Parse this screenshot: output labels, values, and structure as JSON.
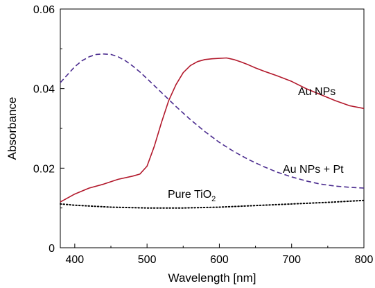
{
  "chart_data": {
    "type": "line",
    "title": "",
    "xlabel": "Wavelength [nm]",
    "ylabel": "Absorbance",
    "xlim": [
      380,
      800
    ],
    "ylim": [
      0,
      0.06
    ],
    "x_ticks": [
      400,
      500,
      600,
      700,
      800
    ],
    "x_tick_labels": [
      "400",
      "500",
      "600",
      "700",
      "800"
    ],
    "y_ticks": [
      0,
      0.02,
      0.04,
      0.06
    ],
    "y_tick_labels": [
      "0",
      "0.02",
      "0.04",
      "0.06"
    ],
    "grid": false,
    "legend": "none (labels placed next to curves)",
    "series": [
      {
        "name": "Au NPs",
        "color": "#b2182b",
        "style": "solid",
        "x": [
          380,
          400,
          420,
          440,
          460,
          480,
          490,
          500,
          510,
          520,
          530,
          540,
          550,
          560,
          570,
          580,
          590,
          600,
          610,
          620,
          630,
          640,
          650,
          660,
          680,
          700,
          720,
          740,
          760,
          780,
          800
        ],
        "y": [
          0.0115,
          0.0135,
          0.015,
          0.016,
          0.0172,
          0.018,
          0.0185,
          0.0205,
          0.0255,
          0.0315,
          0.037,
          0.041,
          0.044,
          0.0458,
          0.0468,
          0.0473,
          0.0475,
          0.0476,
          0.0477,
          0.0473,
          0.0467,
          0.046,
          0.0452,
          0.0445,
          0.0432,
          0.0418,
          0.04,
          0.0385,
          0.037,
          0.0357,
          0.035
        ]
      },
      {
        "name": "Au NPs + Pt",
        "color": "#4b2c8f",
        "style": "dashed",
        "x": [
          380,
          390,
          400,
          410,
          420,
          430,
          440,
          450,
          460,
          470,
          480,
          490,
          500,
          520,
          540,
          560,
          580,
          600,
          620,
          640,
          660,
          680,
          700,
          720,
          740,
          760,
          780,
          800
        ],
        "y": [
          0.0415,
          0.0435,
          0.0455,
          0.047,
          0.048,
          0.0486,
          0.0487,
          0.0486,
          0.048,
          0.047,
          0.0457,
          0.0442,
          0.0425,
          0.039,
          0.0355,
          0.0322,
          0.0292,
          0.0265,
          0.0242,
          0.0222,
          0.0205,
          0.019,
          0.0178,
          0.0168,
          0.016,
          0.0155,
          0.0152,
          0.015
        ]
      },
      {
        "name": "Pure TiO2",
        "label_main": "Pure TiO",
        "label_sub": "2",
        "color": "#000000",
        "style": "dotted",
        "x": [
          380,
          400,
          450,
          500,
          550,
          600,
          650,
          700,
          750,
          800
        ],
        "y": [
          0.011,
          0.0107,
          0.0102,
          0.01,
          0.01,
          0.0102,
          0.0106,
          0.011,
          0.0114,
          0.0119
        ]
      }
    ]
  }
}
